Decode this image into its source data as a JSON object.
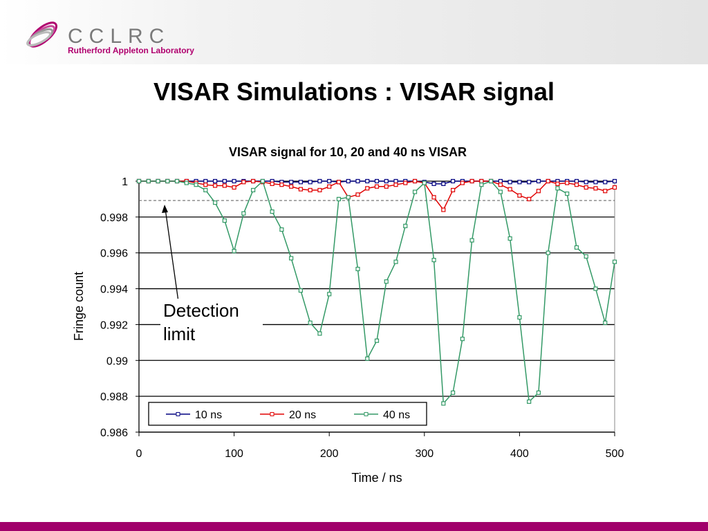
{
  "header": {
    "organization": "CCLRC",
    "laboratory": "Rutherford Appleton Laboratory",
    "slide_title": "VISAR Simulations : VISAR signal"
  },
  "chart_data": {
    "type": "line",
    "title": "VISAR signal for 10, 20 and 40 ns VISAR",
    "x_label": "Time / ns",
    "y_label": "Fringe count",
    "annotation": "Detection limit",
    "detection_limit": 0.99892,
    "x": [
      0,
      10,
      20,
      30,
      40,
      50,
      60,
      70,
      80,
      90,
      100,
      110,
      120,
      130,
      140,
      150,
      160,
      170,
      180,
      190,
      200,
      210,
      220,
      230,
      240,
      250,
      260,
      270,
      280,
      290,
      300,
      310,
      320,
      330,
      340,
      350,
      360,
      370,
      380,
      390,
      400,
      410,
      420,
      430,
      440,
      450,
      460,
      470,
      480,
      490,
      500
    ],
    "series": [
      {
        "name": "10 ns",
        "color": "#000080",
        "values": [
          1,
          1,
          1,
          1,
          1,
          1,
          1,
          1,
          1,
          1,
          1,
          1,
          1,
          1,
          1,
          0.99995,
          0.99995,
          0.99995,
          0.99995,
          1,
          1,
          0.99995,
          1,
          1,
          1,
          1,
          1,
          1,
          1,
          1,
          0.99995,
          0.99985,
          0.99985,
          1,
          1,
          1,
          1,
          1,
          1,
          0.99995,
          0.99995,
          0.99995,
          1,
          1,
          1,
          1,
          1,
          0.99995,
          0.99995,
          0.99995,
          1
        ]
      },
      {
        "name": "20 ns",
        "color": "#e00000",
        "values": [
          1,
          1,
          1,
          1,
          1,
          1,
          0.9999,
          0.9998,
          0.99975,
          0.99975,
          0.99965,
          0.99995,
          1,
          0.99995,
          0.99985,
          0.9998,
          0.9997,
          0.99955,
          0.9995,
          0.9995,
          0.9997,
          0.99995,
          0.9991,
          0.99925,
          0.9996,
          0.9997,
          0.9997,
          0.9998,
          0.9999,
          1,
          0.9999,
          0.9991,
          0.9984,
          0.9995,
          0.9999,
          1,
          1,
          1,
          0.9998,
          0.99955,
          0.9992,
          0.999,
          0.99945,
          1,
          0.99985,
          0.9999,
          0.9998,
          0.99965,
          0.9996,
          0.99945,
          0.99965
        ]
      },
      {
        "name": "40 ns",
        "color": "#339966",
        "values": [
          1,
          1,
          1,
          1,
          1,
          0.9999,
          0.9998,
          0.9995,
          0.9988,
          0.9978,
          0.9961,
          0.9982,
          0.9995,
          1,
          0.9983,
          0.9973,
          0.9957,
          0.9939,
          0.9921,
          0.9915,
          0.9937,
          0.999,
          0.9991,
          0.9951,
          0.9901,
          0.9911,
          0.9944,
          0.9955,
          0.9975,
          0.9994,
          0.9999,
          0.9956,
          0.9876,
          0.9882,
          0.9912,
          0.9967,
          0.9998,
          1,
          0.9994,
          0.9968,
          0.9924,
          0.9877,
          0.9882,
          0.996,
          0.9996,
          0.9993,
          0.9963,
          0.9958,
          0.994,
          0.9921,
          0.9955
        ]
      }
    ],
    "xlim": [
      0,
      500
    ],
    "xticks": [
      0,
      100,
      200,
      300,
      400,
      500
    ],
    "ylim": [
      0.986,
      1
    ],
    "yticks": [
      0.986,
      0.988,
      0.99,
      0.992,
      0.994,
      0.996,
      0.998,
      1
    ],
    "grid": true,
    "legend": "bottom-left"
  }
}
